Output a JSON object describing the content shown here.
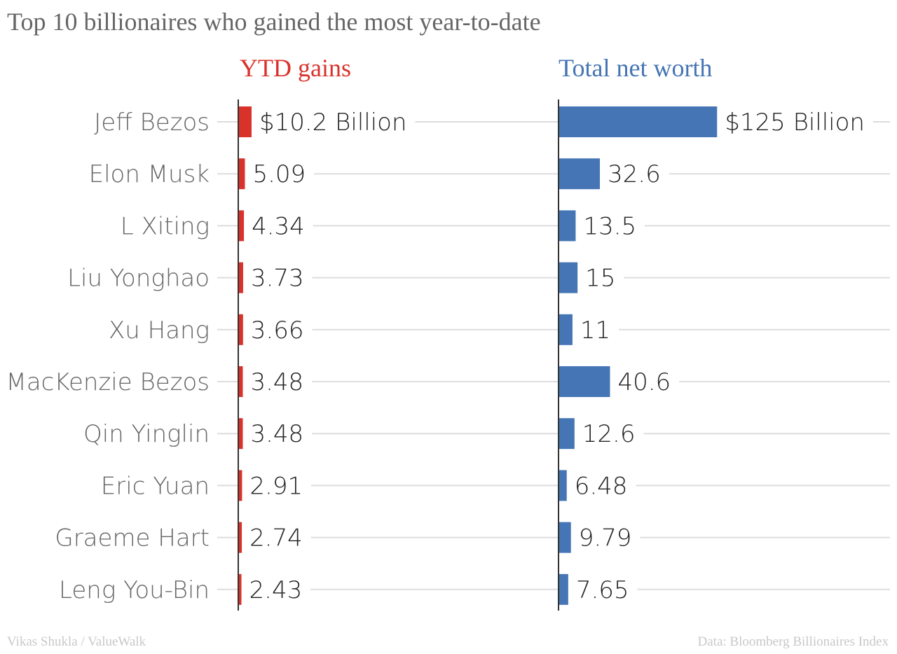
{
  "chart_data": {
    "type": "bar",
    "orientation": "horizontal",
    "title": "Top 10 billionaires who gained the most year-to-date",
    "categories": [
      "Jeff Bezos",
      "Elon Musk",
      "L Xiting",
      "Liu Yonghao",
      "Xu Hang",
      "MacKenzie Bezos",
      "Qin Yinglin",
      "Eric Yuan",
      "Graeme Hart",
      "Leng You-Bin"
    ],
    "series": [
      {
        "name": "YTD gains",
        "color": "#d9322b",
        "values": [
          10.2,
          5.09,
          4.34,
          3.73,
          3.66,
          3.48,
          3.48,
          2.91,
          2.74,
          2.43
        ],
        "labels": [
          "$10.2 Billion",
          "5.09",
          "4.34",
          "3.73",
          "3.66",
          "3.48",
          "3.48",
          "2.91",
          "2.74",
          "2.43"
        ],
        "unit": "Billion USD"
      },
      {
        "name": "Total net worth",
        "color": "#4575b4",
        "values": [
          125,
          32.6,
          13.5,
          15,
          11,
          40.6,
          12.6,
          6.48,
          9.79,
          7.65
        ],
        "labels": [
          "$125 Billion",
          "32.6",
          "13.5",
          "15",
          "11",
          "40.6",
          "12.6",
          "6.48",
          "9.79",
          "7.65"
        ],
        "unit": "Billion USD"
      }
    ],
    "xlabel": "",
    "ylabel": "",
    "grid": true
  },
  "footer": {
    "credit": "Vikas Shukla / ValueWalk",
    "source": "Data: Bloomberg Billionaires Index"
  },
  "colors": {
    "title": "#666666",
    "gridline": "#dddddd",
    "axis": "#333333"
  }
}
